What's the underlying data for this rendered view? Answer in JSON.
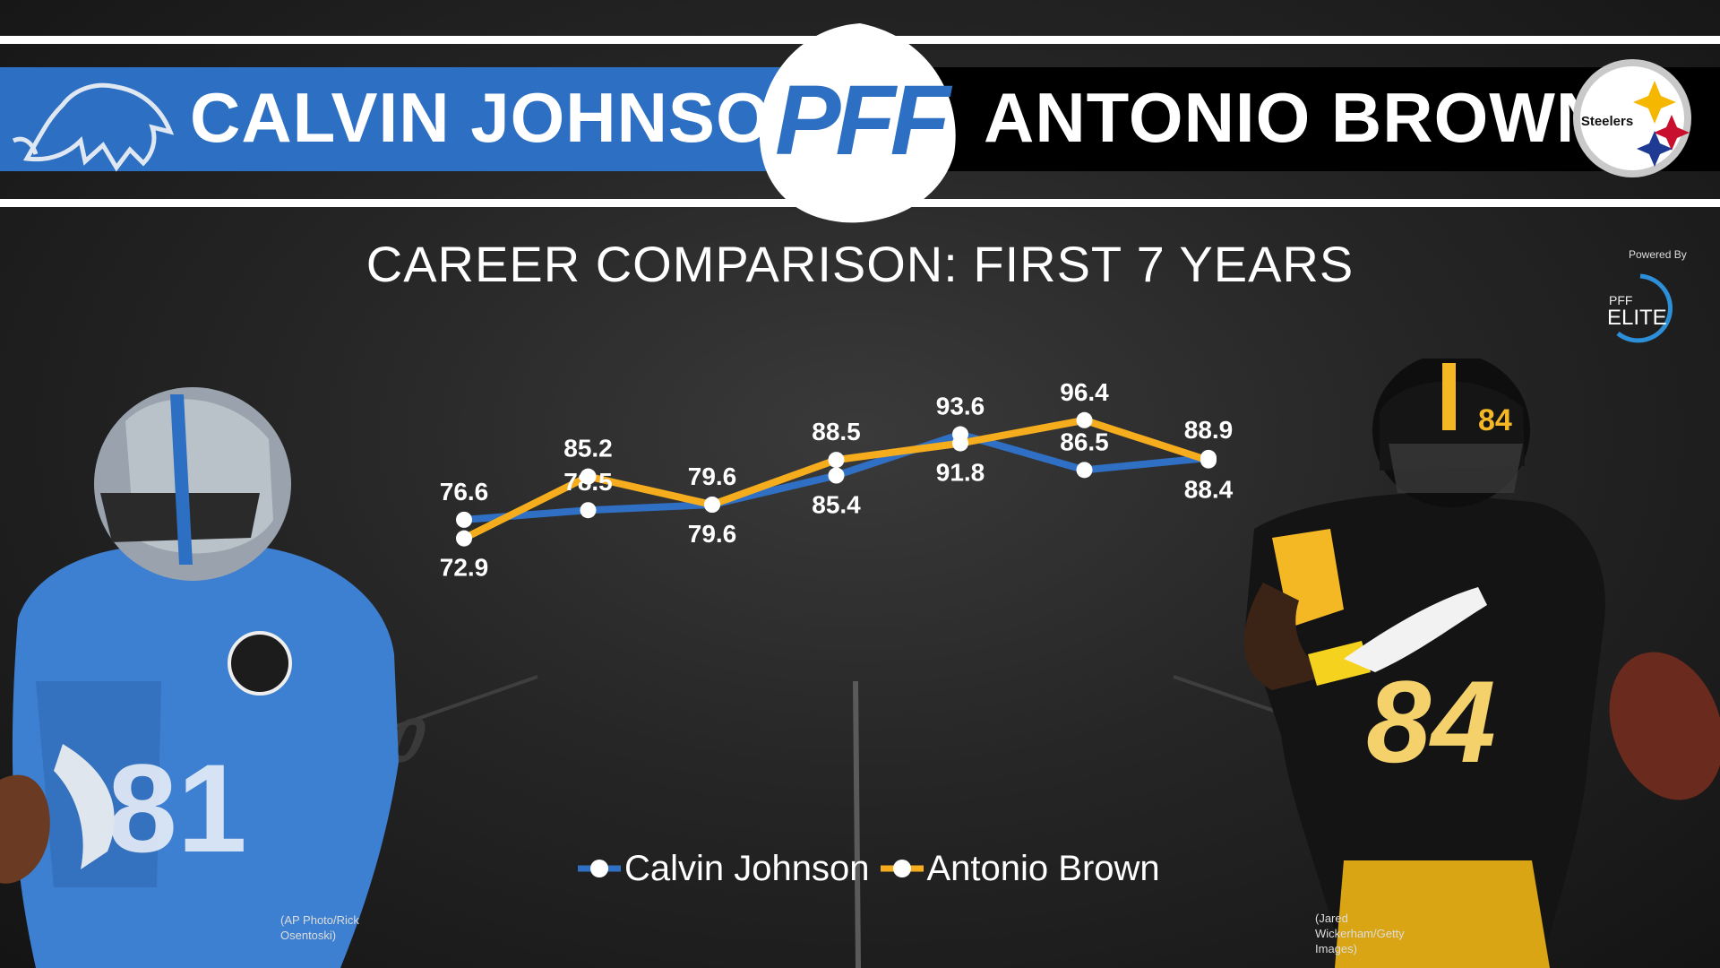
{
  "header": {
    "left_player": "CALVIN JOHNSON",
    "right_player": "ANTONIO BROWN",
    "center_logo": "PFF",
    "left_logo": "lions-logo",
    "right_logo": "steelers-logo",
    "steelers_text": "Steelers",
    "left_color": "#2d6fc2",
    "right_color": "#000000"
  },
  "badge": {
    "powered_by": "Powered By",
    "pff": "PFF",
    "elite": "ELITE"
  },
  "credits": {
    "left": "(AP Photo/Rick Osentoski)",
    "right": "(Jared Wickerham/Getty Images)"
  },
  "chart_data": {
    "type": "line",
    "title": "CAREER COMPARISON: FIRST 7 YEARS",
    "xlabel": "",
    "ylabel": "",
    "x": [
      1,
      2,
      3,
      4,
      5,
      6,
      7
    ],
    "grid": false,
    "legend_position": "bottom",
    "series": [
      {
        "name": "Calvin Johnson",
        "color": "#2f6fc4",
        "values": [
          76.6,
          78.5,
          79.6,
          85.4,
          93.6,
          86.5,
          88.9
        ]
      },
      {
        "name": "Antonio Brown",
        "color": "#f5ad1e",
        "values": [
          72.9,
          85.2,
          79.6,
          88.5,
          91.8,
          96.4,
          88.4
        ]
      }
    ]
  }
}
